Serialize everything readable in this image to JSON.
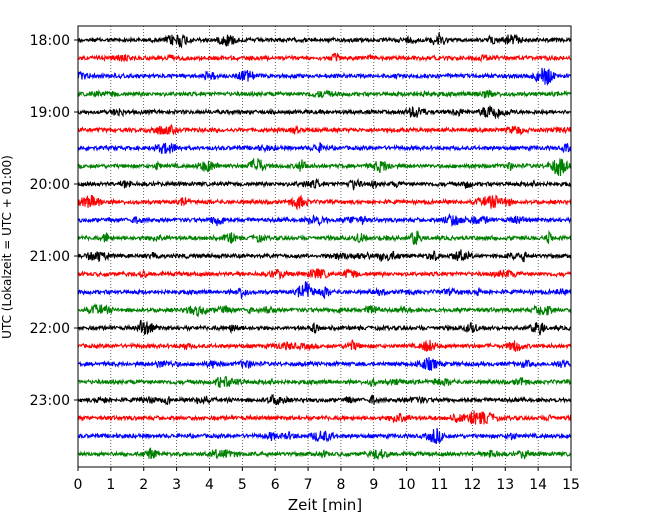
{
  "chart_data": {
    "type": "line",
    "subtype": "seismogram-helicorder",
    "xlabel": "Zeit  [min]",
    "ylabel": "UTC (Lokalzeit = UTC + 01:00)",
    "xlim": [
      0,
      15
    ],
    "x_ticks": [
      0,
      1,
      2,
      3,
      4,
      5,
      6,
      7,
      8,
      9,
      10,
      11,
      12,
      13,
      14,
      15
    ],
    "x_grid": "dotted vertical lines at each minute",
    "y_tick_labels": [
      "18:00",
      "19:00",
      "20:00",
      "21:00",
      "22:00",
      "23:00"
    ],
    "trace_interval_minutes": 15,
    "trace_color_cycle": [
      "#000000",
      "#ff0000",
      "#0000ff",
      "#008000"
    ],
    "traces": [
      {
        "start": "18:00"
      },
      {
        "start": "18:15"
      },
      {
        "start": "18:30"
      },
      {
        "start": "18:45"
      },
      {
        "start": "19:00"
      },
      {
        "start": "19:15"
      },
      {
        "start": "19:30"
      },
      {
        "start": "19:45"
      },
      {
        "start": "20:00"
      },
      {
        "start": "20:15"
      },
      {
        "start": "20:30"
      },
      {
        "start": "20:45"
      },
      {
        "start": "21:00"
      },
      {
        "start": "21:15"
      },
      {
        "start": "21:30"
      },
      {
        "start": "21:45"
      },
      {
        "start": "22:00"
      },
      {
        "start": "22:15"
      },
      {
        "start": "22:30"
      },
      {
        "start": "22:45"
      },
      {
        "start": "23:00"
      },
      {
        "start": "23:15"
      },
      {
        "start": "23:30"
      },
      {
        "start": "23:45"
      }
    ]
  }
}
